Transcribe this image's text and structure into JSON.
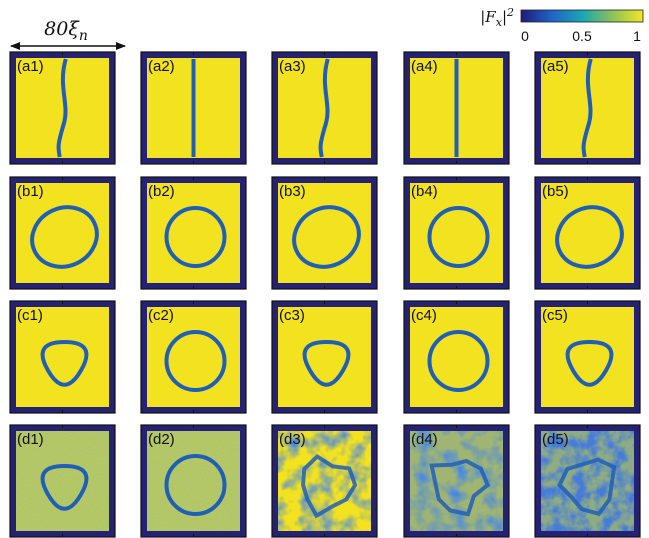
{
  "figure": {
    "scale_bar": {
      "label": "80ξn"
    },
    "colorbar": {
      "label": "|Fx|2",
      "ticks": [
        "0",
        "0.5",
        "1"
      ],
      "colors": [
        "#1d1b7a",
        "#1f63c8",
        "#18a6b3",
        "#8cc25a",
        "#f5e51f"
      ]
    },
    "rows": [
      {
        "row_id": "a",
        "pattern": "domain-wall",
        "panels": [
          {
            "label": "(a1)",
            "shape": "wavy-wall",
            "noise": "none"
          },
          {
            "label": "(a2)",
            "shape": "straight-wall",
            "noise": "none"
          },
          {
            "label": "(a3)",
            "shape": "wavy-wall",
            "noise": "none"
          },
          {
            "label": "(a4)",
            "shape": "straight-wall",
            "noise": "none"
          },
          {
            "label": "(a5)",
            "shape": "wavy-wall",
            "noise": "none"
          }
        ]
      },
      {
        "row_id": "b",
        "pattern": "ring",
        "panels": [
          {
            "label": "(b1)",
            "shape": "ellipse",
            "noise": "none"
          },
          {
            "label": "(b2)",
            "shape": "circle",
            "noise": "none"
          },
          {
            "label": "(b3)",
            "shape": "ellipse",
            "noise": "none"
          },
          {
            "label": "(b4)",
            "shape": "circle",
            "noise": "none"
          },
          {
            "label": "(b5)",
            "shape": "ellipse",
            "noise": "none"
          }
        ]
      },
      {
        "row_id": "c",
        "pattern": "ring",
        "panels": [
          {
            "label": "(c1)",
            "shape": "triangle",
            "noise": "none"
          },
          {
            "label": "(c2)",
            "shape": "circle",
            "noise": "none"
          },
          {
            "label": "(c3)",
            "shape": "triangle",
            "noise": "none"
          },
          {
            "label": "(c4)",
            "shape": "circle",
            "noise": "none"
          },
          {
            "label": "(c5)",
            "shape": "triangle",
            "noise": "none"
          }
        ]
      },
      {
        "row_id": "d",
        "pattern": "ring",
        "panels": [
          {
            "label": "(d1)",
            "shape": "triangle",
            "noise": "speckle"
          },
          {
            "label": "(d2)",
            "shape": "circle",
            "noise": "speckle"
          },
          {
            "label": "(d3)",
            "shape": "blob",
            "noise": "medium"
          },
          {
            "label": "(d4)",
            "shape": "blob",
            "noise": "strong"
          },
          {
            "label": "(d5)",
            "shape": "blob",
            "noise": "chaotic"
          }
        ]
      }
    ]
  }
}
